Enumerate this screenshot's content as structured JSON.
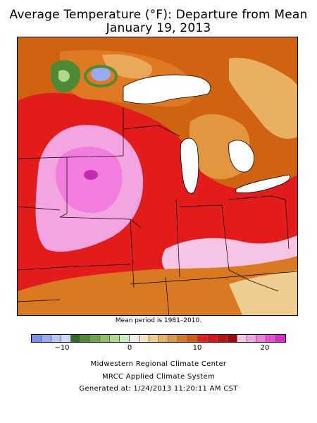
{
  "title_line1": "Average Temperature (°F): Departure from Mean",
  "title_line2": "January 19, 2013",
  "note": "Mean period is 1981–2010.",
  "legend": {
    "colors": [
      "#7b8ff0",
      "#98aaf2",
      "#b5c4f5",
      "#cfd9f7",
      "#2e6d1f",
      "#4d8a33",
      "#6da64a",
      "#8fc067",
      "#b0d88e",
      "#cfe9b8",
      "#eeeeee",
      "#f5e3c2",
      "#efcc8f",
      "#e8b060",
      "#e29640",
      "#d97a23",
      "#d05f12",
      "#ee1d1d",
      "#d91515",
      "#c00e0e",
      "#a20707",
      "#f6c4e4",
      "#f5a4e2",
      "#f27dde",
      "#e84fd8",
      "#dc2acd"
    ],
    "ticks": [
      {
        "label": "−10",
        "value": -10
      },
      {
        "label": "0",
        "value": 0
      },
      {
        "label": "10",
        "value": 10
      },
      {
        "label": "20",
        "value": 20
      }
    ]
  },
  "footer": {
    "line1": "Midwestern Regional Climate Center",
    "line2": "MRCC Applied Climate System",
    "line3": "Generated at: 1/24/2013 11:20:11 AM CST"
  }
}
